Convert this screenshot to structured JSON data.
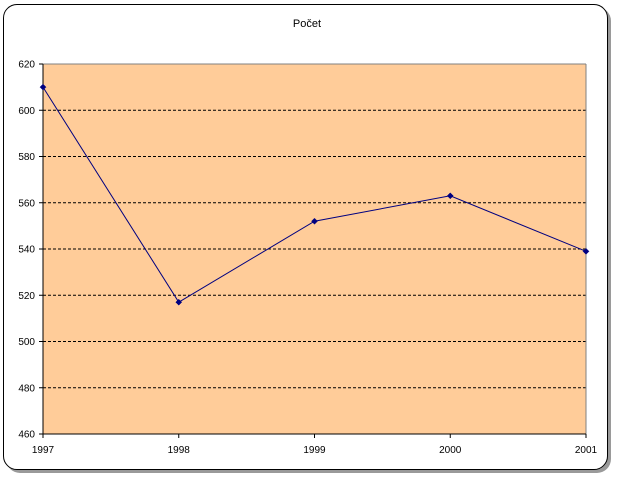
{
  "chart_data": {
    "type": "line",
    "title": "Počet",
    "xlabel": "",
    "ylabel": "",
    "categories": [
      "1997",
      "1998",
      "1999",
      "2000",
      "2001"
    ],
    "series": [
      {
        "values": [
          610,
          517,
          552,
          563,
          539
        ]
      }
    ],
    "ylim": [
      460,
      620
    ],
    "yticks": [
      "460",
      "480",
      "500",
      "520",
      "540",
      "560",
      "580",
      "600",
      "620"
    ],
    "grid": "horizontal dashed",
    "legend": "none",
    "colors": {
      "plot_background": "#FFCC99",
      "line": "#000080",
      "marker": "#000080",
      "grid": "#000000"
    }
  }
}
